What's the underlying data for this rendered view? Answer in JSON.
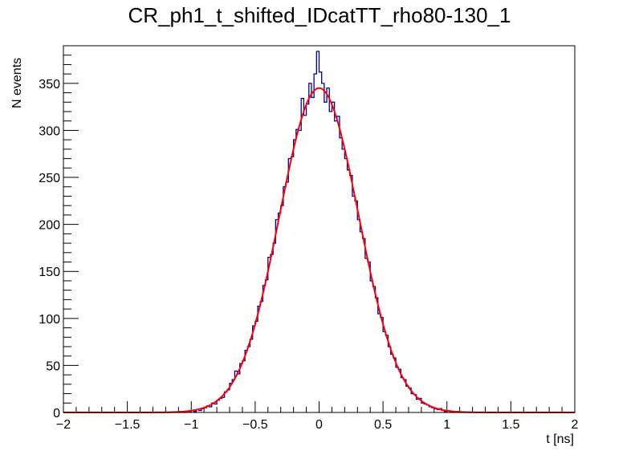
{
  "chart_data": {
    "type": "histogram",
    "title": "CR_ph1_t_shifted_IDcatTT_rho80-130_1",
    "xlabel": "t [ns]",
    "ylabel": "N events",
    "xlim": [
      -2,
      2
    ],
    "ylim": [
      0,
      390
    ],
    "x_ticks": [
      "-2",
      "-1.5",
      "-1",
      "-0.5",
      "0",
      "0.5",
      "1",
      "1.5",
      "2"
    ],
    "y_ticks": [
      "0",
      "50",
      "100",
      "150",
      "200",
      "250",
      "300",
      "350"
    ],
    "grid": false,
    "histogram": {
      "color": "#000099",
      "bin_start": -1.1,
      "bin_width": 0.02,
      "values": [
        0,
        1,
        0,
        1,
        1,
        2,
        1,
        3,
        2,
        4,
        5,
        7,
        6,
        10,
        9,
        13,
        15,
        16,
        22,
        24,
        31,
        35,
        44,
        41,
        52,
        55,
        66,
        70,
        78,
        92,
        97,
        113,
        118,
        135,
        141,
        165,
        168,
        180,
        205,
        212,
        220,
        240,
        245,
        270,
        272,
        290,
        301,
        300,
        334,
        316,
        328,
        350,
        335,
        360,
        384,
        362,
        350,
        330,
        345,
        320,
        330,
        310,
        315,
        292,
        280,
        270,
        258,
        252,
        230,
        225,
        205,
        192,
        185,
        164,
        160,
        140,
        134,
        122,
        105,
        101,
        86,
        82,
        70,
        62,
        58,
        48,
        46,
        37,
        35,
        28,
        26,
        20,
        19,
        14,
        15,
        10,
        9,
        8,
        6,
        5,
        4,
        3,
        4,
        2,
        1,
        2,
        1,
        0,
        1,
        0
      ]
    },
    "fit": {
      "function": "gaussian",
      "color": "#ff0000",
      "constant": 345,
      "mean": 0,
      "sigma": 0.31,
      "range": [
        -2,
        2
      ]
    }
  }
}
